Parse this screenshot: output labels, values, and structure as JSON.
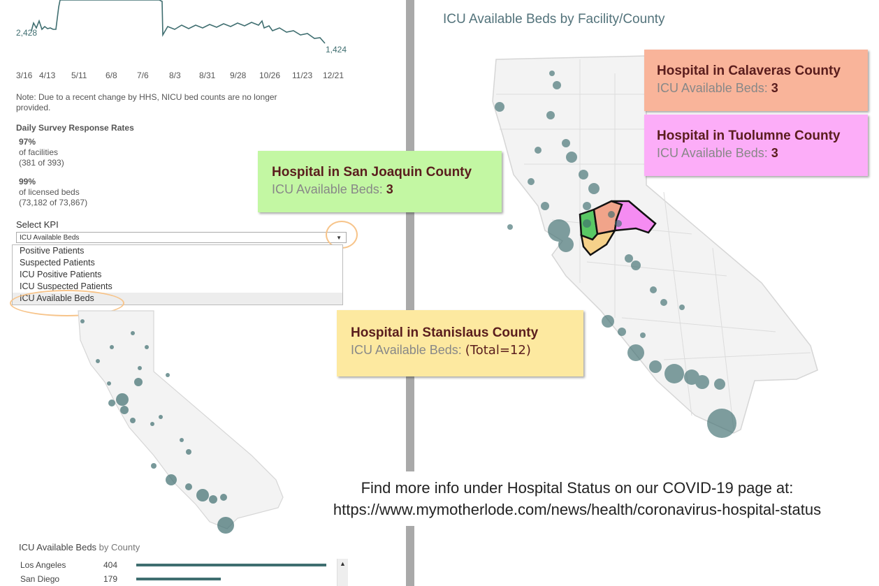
{
  "trend": {
    "start_value": "2,428",
    "end_value": "1,424",
    "ticks": [
      "3/16",
      "4/13",
      "5/11",
      "6/8",
      "7/6",
      "8/3",
      "8/31",
      "9/28",
      "10/26",
      "11/23",
      "12/21"
    ]
  },
  "note": "Note: Due to a recent change by HHS, NICU bed counts are no longer provided.",
  "survey": {
    "title": "Daily Survey Response Rates",
    "facilities_pct": "97%",
    "facilities_label": "of facilities",
    "facilities_count": "(381 of 393)",
    "beds_pct": "99%",
    "beds_label": "of licensed beds",
    "beds_count": "(73,182 of 73,867)"
  },
  "kpi": {
    "label": "Select KPI",
    "selected": "ICU Available Beds",
    "options": [
      "Positive Patients",
      "Suspected Patients",
      "ICU Positive Patients",
      "ICU Suspected Patients",
      "ICU Available Beds"
    ]
  },
  "map_title": {
    "main": "ICU Available Beds",
    "rest": "by Facility/County"
  },
  "callouts": {
    "calaveras": {
      "title": "Hospital in Calaveras County",
      "label": "ICU Available Beds:",
      "value": "3",
      "color": "#f9b49a"
    },
    "tuolumne": {
      "title": "Hospital in Tuolumne County",
      "label": "ICU Available Beds:",
      "value": "3",
      "color": "#fcadf8"
    },
    "san_joaquin": {
      "title": "Hospital in San Joaquin County",
      "label": "ICU Available Beds:",
      "value": "3",
      "color": "#c3f7a3"
    },
    "stanislaus": {
      "title": "Hospital in Stanislaus County",
      "label": "ICU Available Beds:",
      "value": "(Total=12)",
      "color": "#fde9a0"
    }
  },
  "footer": {
    "line1": "Find more info under Hospital Status on our COVID-19 page at:",
    "line2": "https://www.mymotherlode.com/news/health/coronavirus-hospital-status"
  },
  "by_county": {
    "title_main": "ICU Available Beds",
    "title_rest": "by County",
    "rows": [
      {
        "county": "Los Angeles",
        "value": "404"
      },
      {
        "county": "San Diego",
        "value": "179"
      }
    ]
  },
  "colors": {
    "marker": "#3f6e70",
    "accent": "#53737b",
    "highlight_oval": "#f7c48a"
  }
}
